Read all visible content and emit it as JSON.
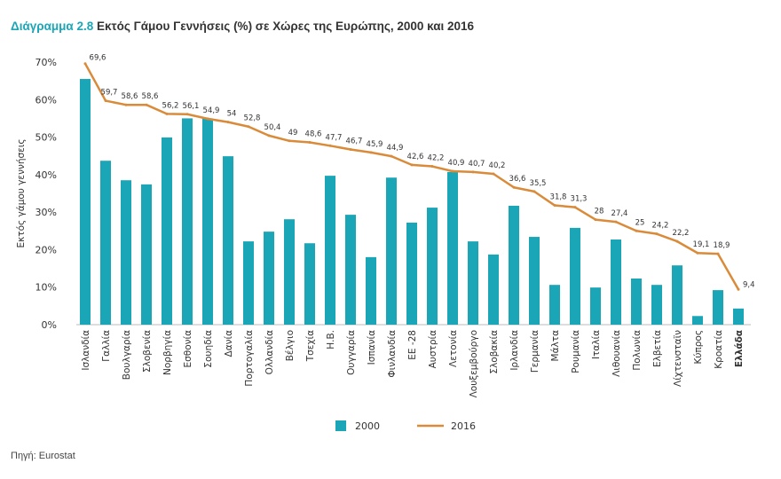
{
  "title_prefix": "Διάγραμμα 2.8",
  "title_text": "Εκτός Γάμου Γεννήσεις (%) σε Χώρες της Ευρώπης, 2000 και 2016",
  "source": "Πηγή: Eurostat",
  "chart_data": {
    "type": "bar+line",
    "title": "Διάγραμμα 2.8 Εκτός Γάμου Γεννήσεις (%) σε Χώρες της Ευρώπης, 2000 και 2016",
    "ylabel": "Εκτός γάμου γεννήσεις",
    "xlabel": "",
    "ylim": [
      0,
      70
    ],
    "yticks": [
      "0%",
      "10%",
      "20%",
      "30%",
      "40%",
      "50%",
      "60%",
      "70%"
    ],
    "grid": false,
    "legend": "bottom",
    "highlighted_category": "Ελλάδα",
    "categories": [
      "Ισλανδία",
      "Γαλλία",
      "Βουλγαρία",
      "Σλοβενία",
      "Νορβηγία",
      "Εσθονία",
      "Σουηδία",
      "Δανία",
      "Πορτογαλία",
      "Ολλανδία",
      "Βέλγιο",
      "Τσεχία",
      "Η.Β.",
      "Ουγγαρία",
      "Ισπανία",
      "Φινλανδία",
      "ΕΕ -28",
      "Αυστρία",
      "Λετονία",
      "Λουξεμβούργο",
      "Σλοβακία",
      "Ιρλανδία",
      "Γερμανία",
      "Μάλτα",
      "Ρουμανία",
      "Ιταλία",
      "Λιθουανία",
      "Πολωνία",
      "Ελβετία",
      "Λίχτενσταϊν",
      "Κύπρος",
      "Κροατία",
      "Ελλάδα"
    ],
    "series": [
      {
        "name": "2000",
        "type": "bar",
        "color": "#1aa6b7",
        "values": [
          65.5,
          43.7,
          38.5,
          37.4,
          49.9,
          55.0,
          55.0,
          44.9,
          22.2,
          24.8,
          28.1,
          21.7,
          39.7,
          29.3,
          18.0,
          39.2,
          27.2,
          31.2,
          40.7,
          22.2,
          18.7,
          31.7,
          23.4,
          10.6,
          25.8,
          9.9,
          22.7,
          12.3,
          10.6,
          15.8,
          2.3,
          9.2,
          4.3
        ]
      },
      {
        "name": "2016",
        "type": "line",
        "color": "#d98b3a",
        "values": [
          69.6,
          59.7,
          58.6,
          58.6,
          56.2,
          56.1,
          54.9,
          54,
          52.8,
          50.4,
          49,
          48.6,
          47.7,
          46.7,
          45.9,
          44.9,
          42.6,
          42.2,
          40.9,
          40.7,
          40.2,
          36.6,
          35.5,
          31.8,
          31.3,
          28,
          27.4,
          25,
          24.2,
          22.2,
          19.1,
          18.9,
          9.4
        ],
        "labels": [
          "69,6",
          "59,7",
          "58,6",
          "58,6",
          "56,2",
          "56,1",
          "54,9",
          "54",
          "52,8",
          "50,4",
          "49",
          "48,6",
          "47,7",
          "46,7",
          "45,9",
          "44,9",
          "42,6",
          "42,2",
          "40,9",
          "40,7",
          "40,2",
          "36,6",
          "35,5",
          "31,8",
          "31,3",
          "28",
          "27,4",
          "25",
          "24,2",
          "22,2",
          "19,1",
          "18,9",
          "9,4"
        ]
      }
    ]
  }
}
